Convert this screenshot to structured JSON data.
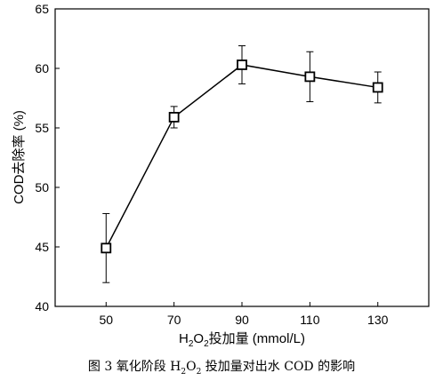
{
  "chart_data": {
    "type": "line",
    "x": [
      50,
      70,
      90,
      110,
      130
    ],
    "series": [
      {
        "values": [
          44.9,
          55.9,
          60.3,
          59.3,
          58.4
        ],
        "error": [
          2.9,
          0.9,
          1.6,
          2.1,
          1.3
        ],
        "marker": "square",
        "color": "#000000"
      }
    ],
    "ylabel": "COD去除率 (%)",
    "xlabel": {
      "prefix": "H",
      "sub1": "2",
      "mid": "O",
      "sub2": "2",
      "suffix": "投加量 (mmol/L)"
    },
    "xlim": [
      35,
      145
    ],
    "ylim": [
      40,
      65
    ],
    "xticks": [
      50,
      70,
      90,
      110,
      130
    ],
    "yticks": [
      40,
      45,
      50,
      55,
      60,
      65
    ],
    "grid": false
  },
  "caption": {
    "prefix": "图 3 氧化阶段 H",
    "sub1": "2",
    "mid": "O",
    "sub2": "2",
    "suffix": " 投加量对出水 COD 的影响"
  }
}
